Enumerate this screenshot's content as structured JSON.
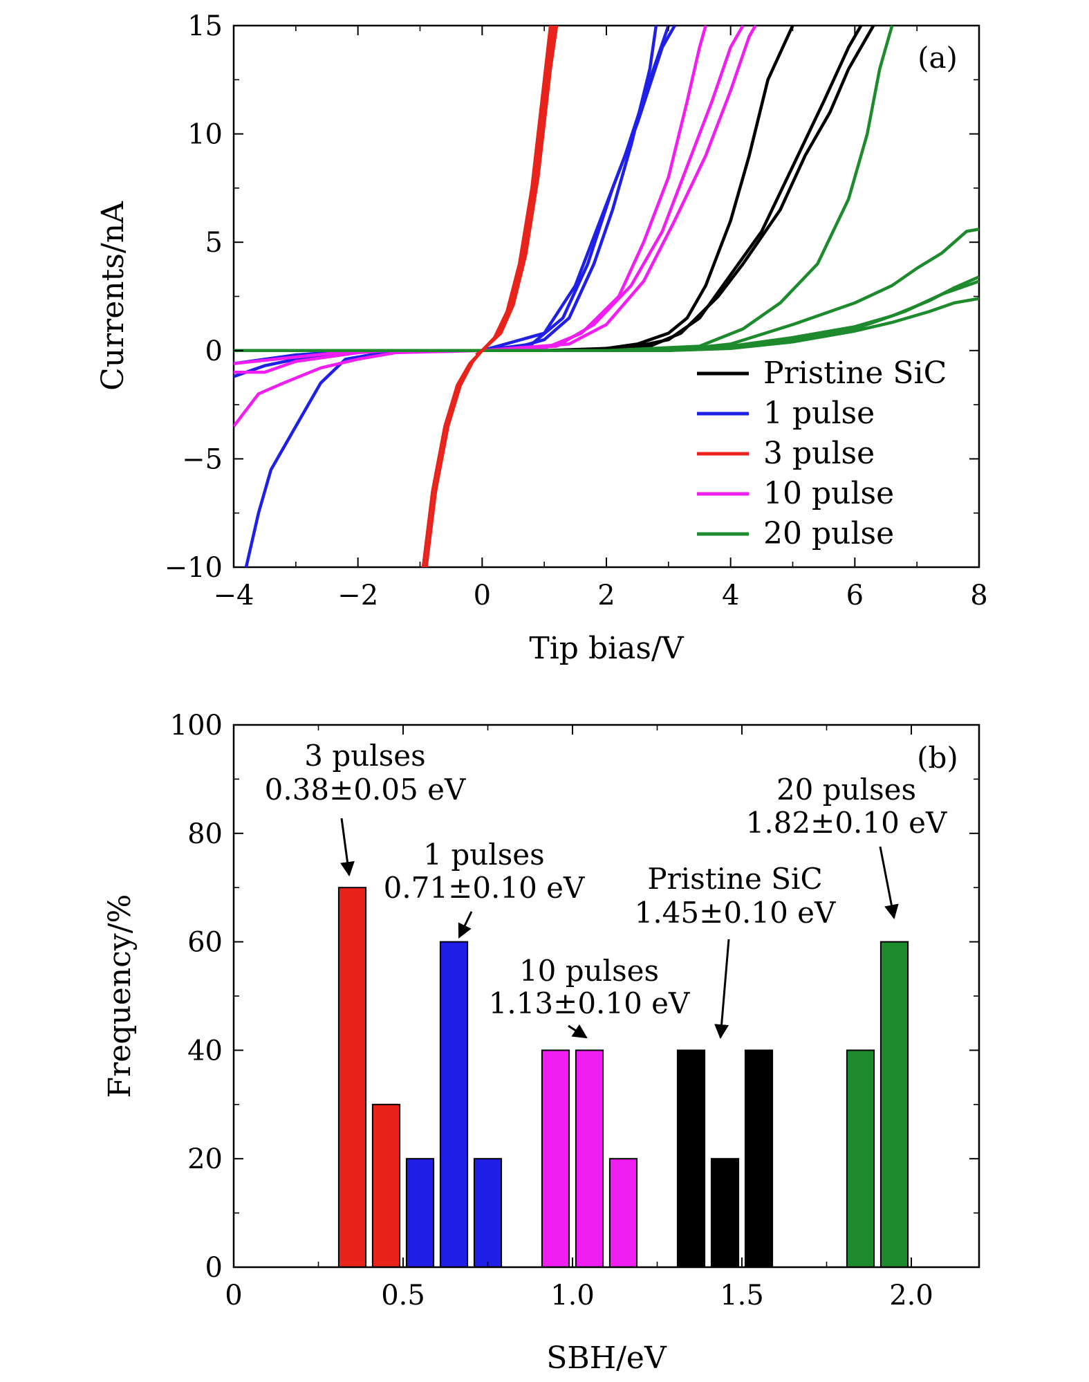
{
  "chart_data": [
    {
      "panel_label": "(a)",
      "type": "line",
      "xlabel": "Tip bias/V",
      "ylabel": "Currents/nA",
      "xlim": [
        -4,
        8
      ],
      "ylim": [
        -10,
        15
      ],
      "x_ticks": [
        -4,
        -2,
        0,
        2,
        4,
        6,
        8
      ],
      "x_tick_labels": [
        "−4",
        "−2",
        "0",
        "2",
        "4",
        "6",
        "8"
      ],
      "y_ticks": [
        -10,
        -5,
        0,
        5,
        10,
        15
      ],
      "y_tick_labels": [
        "−10",
        "−5",
        "0",
        "5",
        "10",
        "15"
      ],
      "grid": false,
      "legend_position": "bottom-right",
      "colors": {
        "pristine": "#000000",
        "pulse1": "#1f1fe6",
        "pulse3": "#e8231c",
        "pulse10": "#f01ef0",
        "pulse20": "#1e8a2e"
      },
      "series": [
        {
          "name": "Pristine SiC",
          "color": "#000000",
          "curves": [
            {
              "x": [
                -4,
                -2,
                0,
                1,
                2,
                2.5,
                3,
                3.3,
                3.6,
                4,
                4.3,
                4.6,
                5
              ],
              "y": [
                0,
                0,
                0,
                0,
                0.1,
                0.3,
                0.8,
                1.5,
                3,
                6,
                9,
                12.5,
                15
              ]
            },
            {
              "x": [
                -4,
                -2,
                0,
                1.5,
                2.5,
                3,
                3.5,
                4,
                4.5,
                5,
                5.5,
                5.9,
                6.1
              ],
              "y": [
                0,
                0,
                0,
                0,
                0.2,
                0.5,
                1.5,
                3.5,
                5.5,
                8.5,
                11.5,
                14,
                15
              ]
            },
            {
              "x": [
                -4,
                -2,
                0,
                1.8,
                2.7,
                3.2,
                3.8,
                4.2,
                4.8,
                5.2,
                5.6,
                5.9,
                6.3
              ],
              "y": [
                0,
                0,
                0,
                0,
                0.2,
                0.8,
                2.5,
                4,
                6.5,
                9,
                11,
                13,
                15
              ]
            }
          ]
        },
        {
          "name": "1 pulse",
          "color": "#1f1fe6",
          "curves": [
            {
              "x": [
                -3.8,
                -3.6,
                -3.4,
                -3,
                -2.6,
                -2.2,
                -1.6,
                -1,
                0,
                0.5,
                1,
                1.4,
                1.8,
                2.1,
                2.4,
                2.7,
                2.8
              ],
              "y": [
                -10,
                -7.5,
                -5.5,
                -3.5,
                -1.5,
                -0.4,
                -0.1,
                0,
                0,
                0.1,
                0.5,
                1.5,
                4,
                6.5,
                9.5,
                13,
                15
              ]
            },
            {
              "x": [
                -4,
                -3.5,
                -3,
                -2.5,
                -2,
                -1.5,
                0,
                0.8,
                1.3,
                1.7,
                2.1,
                2.5,
                2.9,
                3.1
              ],
              "y": [
                -1.2,
                -0.7,
                -0.4,
                -0.2,
                -0.05,
                0,
                0,
                0.3,
                1.5,
                4,
                7.5,
                10.5,
                14,
                15
              ]
            },
            {
              "x": [
                -4,
                -3,
                -2,
                0,
                1,
                1.5,
                1.9,
                2.3,
                2.7,
                3.0
              ],
              "y": [
                -0.6,
                -0.2,
                0,
                0,
                0.8,
                3,
                6,
                9,
                12.5,
                15
              ]
            }
          ]
        },
        {
          "name": "3 pulse",
          "color": "#e8231c",
          "curves": [
            {
              "x": [
                -0.95,
                -0.8,
                -0.6,
                -0.4,
                -0.2,
                0,
                0.2,
                0.4,
                0.6,
                0.8,
                1.0,
                1.1
              ],
              "y": [
                -10,
                -6.5,
                -3.5,
                -1.6,
                -0.6,
                0,
                0.6,
                1.8,
                4,
                7.5,
                12.5,
                15
              ]
            },
            {
              "x": [
                -0.9,
                -0.75,
                -0.55,
                -0.35,
                -0.15,
                0,
                0.25,
                0.45,
                0.65,
                0.85,
                1.05,
                1.15
              ],
              "y": [
                -10,
                -6.5,
                -3.5,
                -1.6,
                -0.5,
                0,
                0.7,
                2,
                4.2,
                7.8,
                12.8,
                15
              ]
            },
            {
              "x": [
                -0.1,
                0,
                0.3,
                0.5,
                0.7,
                0.9,
                1.1,
                1.2
              ],
              "y": [
                -0.2,
                0,
                0.8,
                2.1,
                4.4,
                8,
                13,
                15
              ]
            }
          ]
        },
        {
          "name": "10 pulse",
          "color": "#f01ef0",
          "curves": [
            {
              "x": [
                -4,
                -3.6,
                -3.2,
                -2.6,
                -2,
                -1.4,
                0,
                1,
                1.6,
                2.2,
                2.6,
                3.0,
                3.3,
                3.5,
                3.6
              ],
              "y": [
                -3.5,
                -2,
                -1.5,
                -0.8,
                -0.4,
                -0.1,
                0,
                0.1,
                0.8,
                2.5,
                5,
                8,
                11.5,
                14,
                15
              ]
            },
            {
              "x": [
                -4,
                -3.5,
                -3,
                -2.5,
                -2,
                -1.5,
                0,
                1.2,
                1.8,
                2.4,
                2.9,
                3.3,
                3.7,
                4.0,
                4.2
              ],
              "y": [
                -1.0,
                -1.0,
                -0.5,
                -0.3,
                -0.1,
                0,
                0,
                0.2,
                1.2,
                3,
                5.5,
                8.5,
                11.5,
                14,
                15
              ]
            },
            {
              "x": [
                -4,
                -3,
                -2,
                0,
                1.4,
                2.0,
                2.6,
                3.1,
                3.6,
                4.0,
                4.3,
                4.4
              ],
              "y": [
                -0.6,
                -0.3,
                0,
                0,
                0.3,
                1.2,
                3.2,
                6,
                9,
                12,
                14.5,
                15
              ]
            }
          ]
        },
        {
          "name": "20 pulse",
          "color": "#1e8a2e",
          "curves": [
            {
              "x": [
                -4,
                -2,
                0,
                2,
                3.5,
                4.2,
                4.8,
                5.4,
                5.9,
                6.2,
                6.4,
                6.6
              ],
              "y": [
                0,
                0,
                0,
                0,
                0.2,
                1.0,
                2.2,
                4,
                7,
                10,
                13,
                15
              ]
            },
            {
              "x": [
                -4,
                -2,
                0,
                3,
                4,
                5,
                6,
                6.6,
                7,
                7.4,
                7.8,
                8
              ],
              "y": [
                0,
                0,
                0,
                0,
                0.3,
                1.2,
                2.2,
                3,
                3.8,
                4.5,
                5.5,
                5.6
              ]
            },
            {
              "x": [
                -4,
                -2,
                0,
                3,
                4,
                5,
                6,
                6.6,
                7.2,
                7.6,
                8
              ],
              "y": [
                0,
                0,
                0,
                0,
                0.2,
                0.6,
                1.1,
                1.6,
                2.3,
                2.9,
                3.4
              ]
            },
            {
              "x": [
                -4,
                -2,
                0,
                3,
                4,
                5,
                6,
                6.6,
                7.2,
                7.6,
                8
              ],
              "y": [
                0,
                0,
                0,
                0,
                0.1,
                0.4,
                0.9,
                1.3,
                1.8,
                2.2,
                2.4
              ]
            },
            {
              "x": [
                -4,
                -2,
                0,
                3,
                4,
                5,
                6,
                6.8,
                7.4,
                8
              ],
              "y": [
                0,
                0,
                0,
                0,
                0.2,
                0.5,
                1.0,
                1.8,
                2.6,
                3.2
              ]
            }
          ]
        }
      ]
    },
    {
      "panel_label": "(b)",
      "type": "bar",
      "xlabel": "SBH/eV",
      "ylabel": "Frequency/%",
      "xlim": [
        0,
        2.2
      ],
      "ylim": [
        0,
        100
      ],
      "x_ticks": [
        0,
        0.5,
        1.0,
        1.5,
        2.0
      ],
      "x_tick_labels": [
        "0",
        "0.5",
        "1.0",
        "1.5",
        "2.0"
      ],
      "y_ticks": [
        0,
        20,
        40,
        60,
        80,
        100
      ],
      "y_tick_labels": [
        "0",
        "20",
        "40",
        "60",
        "80",
        "100"
      ],
      "grid": false,
      "bar_width": 0.08,
      "series": [
        {
          "group": "3 pulses",
          "color": "#e8231c",
          "x": [
            0.35,
            0.45
          ],
          "values": [
            70,
            30
          ]
        },
        {
          "group": "1 pulses",
          "color": "#1f1fe6",
          "x": [
            0.55,
            0.65,
            0.75
          ],
          "values": [
            20,
            60,
            20
          ]
        },
        {
          "group": "10 pulses",
          "color": "#f01ef0",
          "x": [
            0.95,
            1.05,
            1.15
          ],
          "values": [
            40,
            40,
            20
          ]
        },
        {
          "group": "Pristine SiC",
          "color": "#000000",
          "x": [
            1.35,
            1.45,
            1.55
          ],
          "values": [
            40,
            20,
            40
          ]
        },
        {
          "group": "20 pulses",
          "color": "#1e8a2e",
          "x": [
            1.85,
            1.95
          ],
          "values": [
            40,
            60
          ]
        }
      ],
      "annotations": [
        {
          "lines": [
            "3 pulses",
            "0.38±0.05 eV"
          ],
          "target": {
            "x": 0.35,
            "y": 70
          }
        },
        {
          "lines": [
            "1 pulses",
            "0.71±0.10 eV"
          ],
          "target": {
            "x": 0.67,
            "y": 61
          }
        },
        {
          "lines": [
            "10 pulses",
            "1.13±0.10 eV"
          ],
          "target": {
            "x": 1.05,
            "y": 41
          }
        },
        {
          "lines": [
            "Pristine SiC",
            "1.45±0.10 eV"
          ],
          "target": {
            "x": 1.43,
            "y": 41
          }
        },
        {
          "lines": [
            "20 pulses",
            "1.82±0.10 eV"
          ],
          "target": {
            "x": 1.96,
            "y": 61
          }
        }
      ]
    }
  ]
}
